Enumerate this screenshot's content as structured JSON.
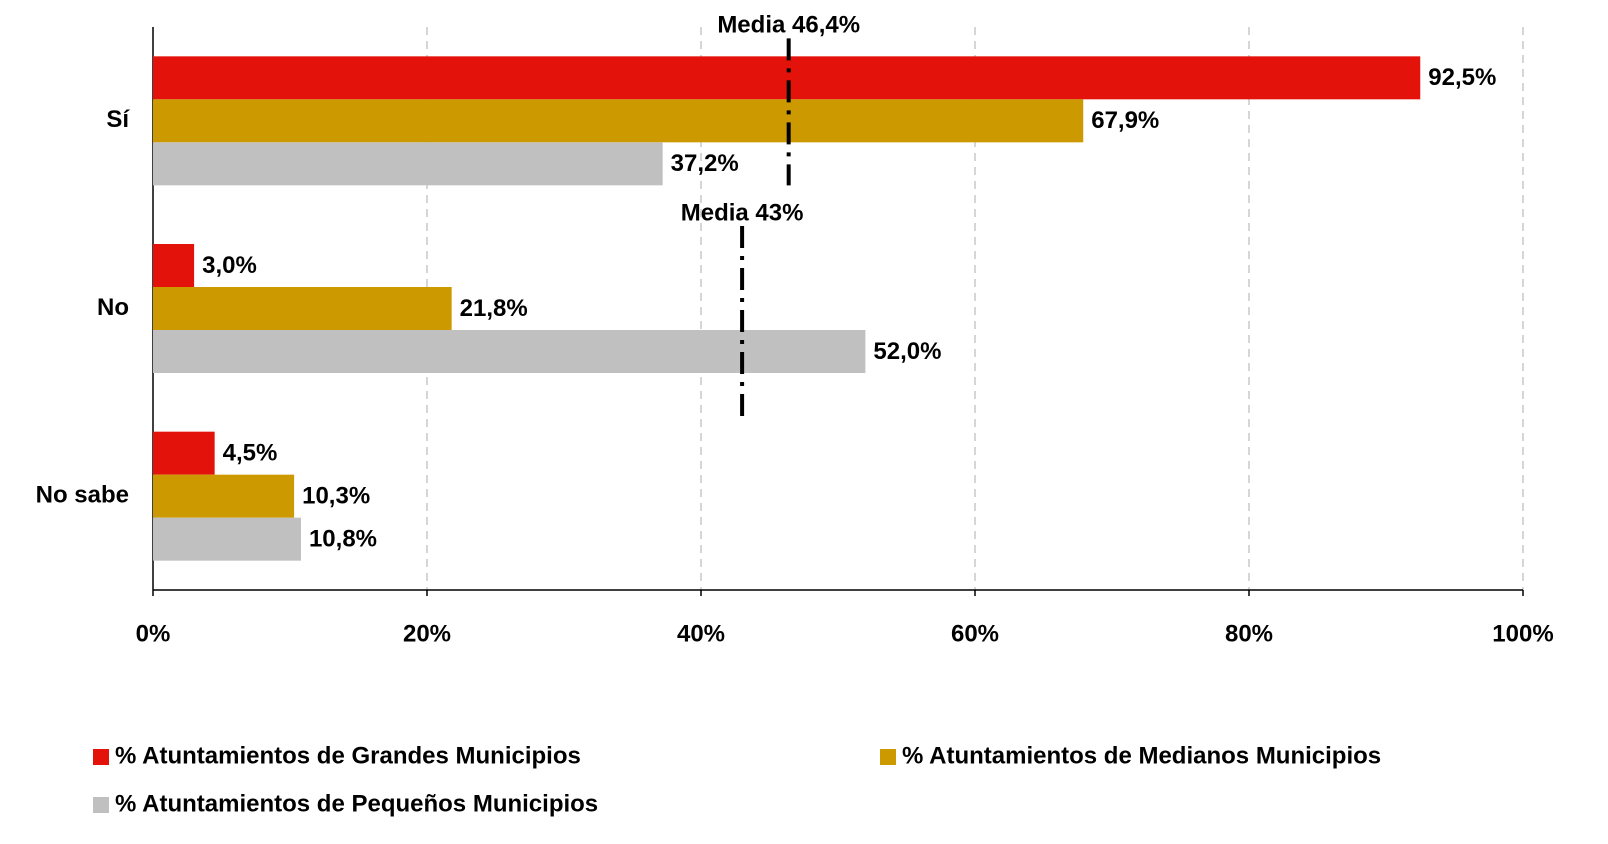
{
  "chart_data": {
    "type": "hbar",
    "categories": [
      "Sí",
      "No",
      "No sabe"
    ],
    "series": [
      {
        "name": "% Atuntamientos de Grandes Municipios",
        "color": "#e3120b",
        "values": [
          92.5,
          3.0,
          4.5
        ],
        "value_labels": [
          "92,5%",
          "3,0%",
          "4,5%"
        ]
      },
      {
        "name": "% Atuntamientos de Medianos Municipios",
        "color": "#cc9900",
        "values": [
          67.9,
          21.8,
          10.3
        ],
        "value_labels": [
          "67,9%",
          "21,8%",
          "10,3%"
        ]
      },
      {
        "name": "% Atuntamientos de Pequeños Municipios",
        "color": "#c0c0c0",
        "values": [
          37.2,
          52.0,
          10.8
        ],
        "value_labels": [
          "37,2%",
          "52,0%",
          "10,8%"
        ]
      }
    ],
    "xlim": [
      0,
      100
    ],
    "xticks": [
      {
        "value": 0,
        "label": "0%"
      },
      {
        "value": 20,
        "label": "20%"
      },
      {
        "value": 40,
        "label": "40%"
      },
      {
        "value": 60,
        "label": "60%"
      },
      {
        "value": 80,
        "label": "80%"
      },
      {
        "value": 100,
        "label": "100%"
      }
    ],
    "grid": true,
    "annotations": [
      {
        "label": "Media 46,4%",
        "value": 46.4
      },
      {
        "label": "Media 43%",
        "value": 43
      }
    ]
  }
}
